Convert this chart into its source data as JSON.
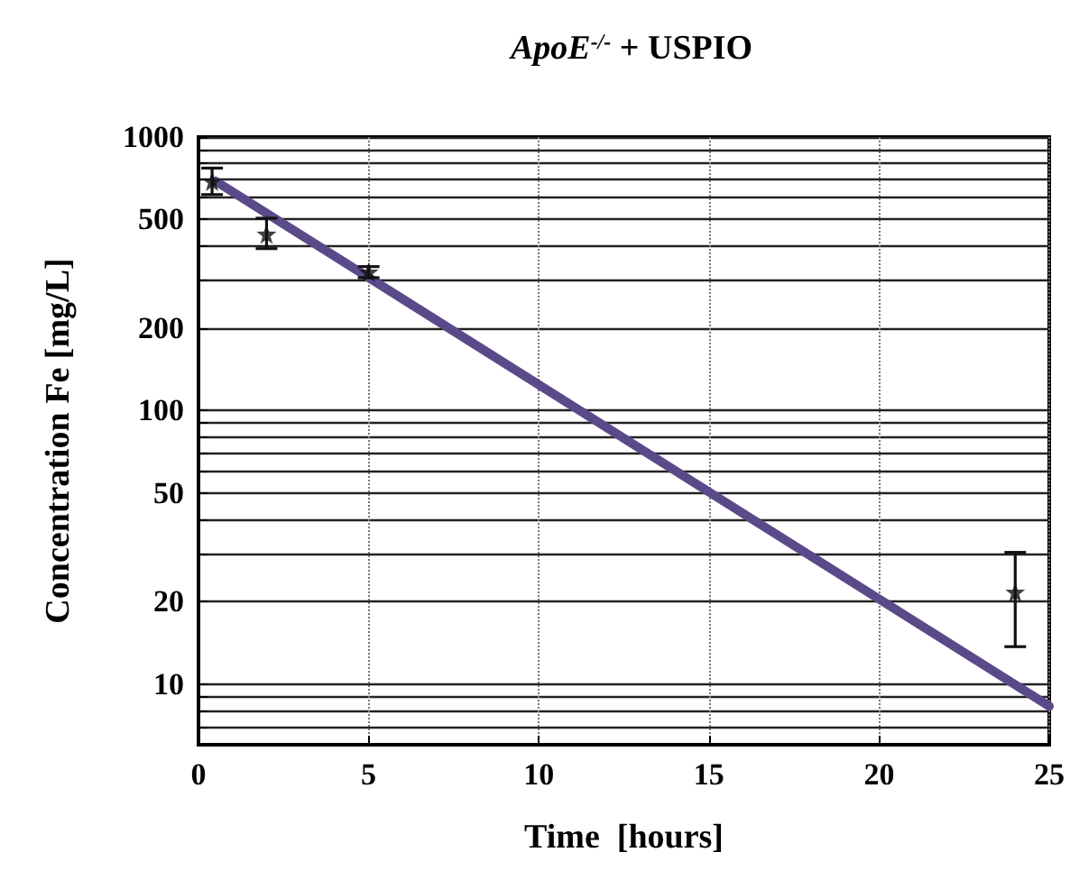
{
  "chart_data": {
    "type": "scatter",
    "title": "ApoE$^{-/-}$ + USPIO",
    "xlabel": "Time  [hours]",
    "ylabel": "Concentration Fe [mg/L]",
    "log": "y",
    "grid": true,
    "marker": "star",
    "xlim": [
      0,
      25
    ],
    "xticks": [
      0,
      5,
      10,
      15,
      20,
      25
    ],
    "ylim": [
      6,
      1000
    ],
    "yticks": [
      {
        "value": 7,
        "label": null
      },
      {
        "value": 8,
        "label": null
      },
      {
        "value": 9,
        "label": null
      },
      10,
      20,
      {
        "value": 30,
        "label": null
      },
      {
        "value": 40,
        "label": null
      },
      50,
      {
        "value": 60,
        "label": null
      },
      {
        "value": 70,
        "label": null
      },
      {
        "value": 80,
        "label": null
      },
      {
        "value": 90,
        "label": null
      },
      100,
      200,
      {
        "value": 300,
        "label": null
      },
      {
        "value": 400,
        "label": null
      },
      500,
      {
        "value": 600,
        "label": null
      },
      {
        "value": 700,
        "label": null
      },
      {
        "value": 800,
        "label": null
      },
      {
        "value": 900,
        "label": null
      },
      1000
    ],
    "series": [
      {
        "color": "#111111",
        "x": [
          0.4,
          2,
          5,
          24
        ],
        "values": [
          690,
          442,
          321,
          21.7
        ],
        "errors": [
          [
            616,
            770
          ],
          [
            391,
            505
          ],
          [
            306,
            336
          ],
          [
            13.7,
            30.3
          ]
        ]
      },
      {
        "type": "line",
        "color": "#5b4a8a",
        "x": [
          0.5,
          25
        ],
        "values": [
          690,
          8.3
        ],
        "marker": "none"
      }
    ]
  }
}
